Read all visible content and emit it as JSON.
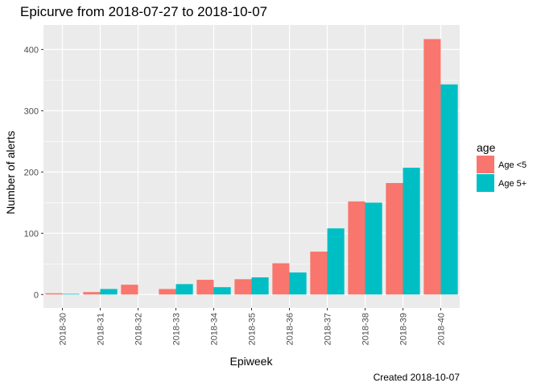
{
  "chart_data": {
    "type": "bar",
    "title": "Epicurve from 2018-07-27 to 2018-10-07",
    "xlabel": "Epiweek",
    "ylabel": "Number of alerts",
    "caption": "Created 2018-10-07",
    "categories": [
      "2018-30",
      "2018-31",
      "2018-32",
      "2018-33",
      "2018-34",
      "2018-35",
      "2018-36",
      "2018-37",
      "2018-38",
      "2018-39",
      "2018-40"
    ],
    "series": [
      {
        "name": "Age <5",
        "color": "#F8766D",
        "values": [
          2,
          4,
          16,
          9,
          24,
          25,
          51,
          70,
          152,
          182,
          417
        ]
      },
      {
        "name": "Age 5+",
        "color": "#00BFC4",
        "values": [
          1,
          9,
          0,
          17,
          12,
          28,
          36,
          108,
          150,
          207,
          343
        ]
      }
    ],
    "ylim": [
      -22,
      440
    ],
    "yticks": [
      0,
      100,
      200,
      300,
      400
    ],
    "legend": {
      "title": "age",
      "position": "right"
    },
    "grid": true,
    "panel_background": "#EBEBEB",
    "grid_color": "#FFFFFF"
  }
}
